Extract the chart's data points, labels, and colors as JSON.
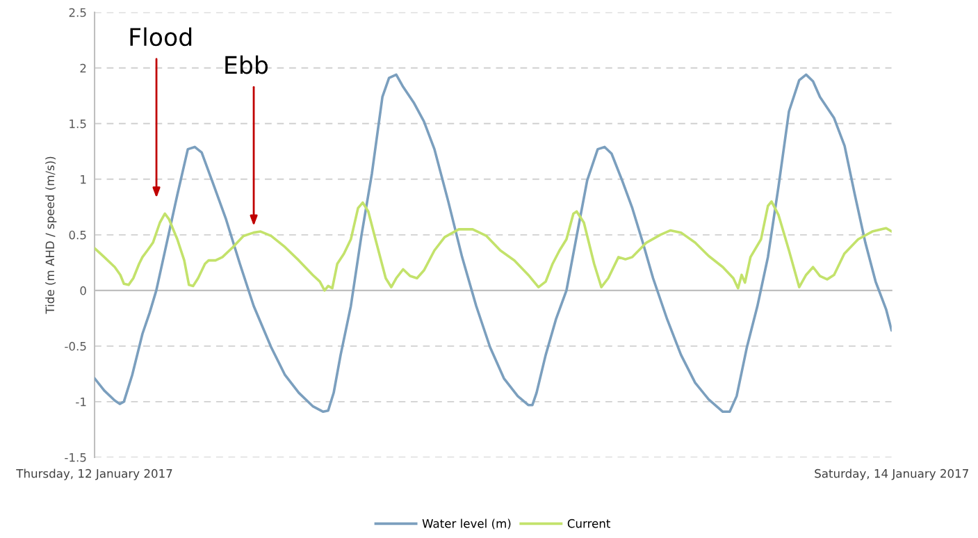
{
  "chart_data": {
    "type": "line",
    "ylabel": "Tide (m AHD / speed (m/s))",
    "xlim": [
      "2017-01-12",
      "2017-01-14"
    ],
    "xticks": [
      {
        "value": "2017-01-12",
        "label": "Thursday, 12 January 2017"
      },
      {
        "value": "2017-01-14",
        "label": "Saturday, 14 January 2017"
      }
    ],
    "ylim": [
      -1.5,
      2.5
    ],
    "yticks": [
      -1.5,
      -1,
      -0.5,
      0,
      0.5,
      1,
      1.5,
      2,
      2.5
    ],
    "grid": "y",
    "legend": "bottom",
    "line_style": "solid",
    "marker": "none",
    "annotations": [
      "Flood",
      "Ebb"
    ],
    "series": [
      {
        "name": "Water level (m)",
        "color": "#7b9fbe",
        "x": [
          "2017-01-12T00:00",
          "2017-01-12T00:35",
          "2017-01-12T01:13",
          "2017-01-12T01:31",
          "2017-01-12T01:46",
          "2017-01-12T02:16",
          "2017-01-12T02:53",
          "2017-01-12T03:19",
          "2017-01-12T03:43",
          "2017-01-12T04:21",
          "2017-01-12T04:59",
          "2017-01-12T05:37",
          "2017-01-12T06:02",
          "2017-01-12T06:27",
          "2017-01-12T07:04",
          "2017-01-12T07:55",
          "2017-01-12T08:45",
          "2017-01-12T09:35",
          "2017-01-12T10:38",
          "2017-01-12T11:28",
          "2017-01-12T12:18",
          "2017-01-12T13:08",
          "2017-01-12T13:46",
          "2017-01-12T14:04",
          "2017-01-12T14:24",
          "2017-01-12T14:49",
          "2017-01-12T15:26",
          "2017-01-12T16:04",
          "2017-01-12T16:42",
          "2017-01-12T17:20",
          "2017-01-12T17:44",
          "2017-01-12T18:10",
          "2017-01-12T18:35",
          "2017-01-12T19:13",
          "2017-01-12T19:50",
          "2017-01-12T20:28",
          "2017-01-12T21:18",
          "2017-01-12T22:08",
          "2017-01-12T22:59",
          "2017-01-12T23:49",
          "2017-01-13T00:39",
          "2017-01-13T01:29",
          "2017-01-13T02:07",
          "2017-01-13T02:22",
          "2017-01-13T02:37",
          "2017-01-13T03:10",
          "2017-01-13T03:47",
          "2017-01-13T04:25",
          "2017-01-13T05:02",
          "2017-01-13T05:40",
          "2017-01-13T06:18",
          "2017-01-13T06:43",
          "2017-01-13T07:08",
          "2017-01-13T07:46",
          "2017-01-13T08:23",
          "2017-01-13T09:01",
          "2017-01-13T09:38",
          "2017-01-13T10:29",
          "2017-01-13T11:19",
          "2017-01-13T12:10",
          "2017-01-13T12:59",
          "2017-01-13T13:50",
          "2017-01-13T14:15",
          "2017-01-13T14:40",
          "2017-01-13T15:17",
          "2017-01-13T15:55",
          "2017-01-13T16:33",
          "2017-01-13T17:11",
          "2017-01-13T17:49",
          "2017-01-13T18:26",
          "2017-01-13T18:51",
          "2017-01-13T19:16",
          "2017-01-13T19:41",
          "2017-01-13T20:32",
          "2017-01-13T21:10",
          "2017-01-13T21:47",
          "2017-01-13T22:25",
          "2017-01-13T23:02",
          "2017-01-13T23:40",
          "2017-01-14T00:00"
        ],
        "values": [
          -0.79,
          -0.9,
          -0.99,
          -1.02,
          -1.0,
          -0.76,
          -0.39,
          -0.2,
          0,
          0.43,
          0.86,
          1.27,
          1.29,
          1.24,
          0.99,
          0.64,
          0.24,
          -0.14,
          -0.51,
          -0.76,
          -0.92,
          -1.04,
          -1.09,
          -1.08,
          -0.92,
          -0.58,
          -0.14,
          0.49,
          1.05,
          1.74,
          1.91,
          1.94,
          1.83,
          1.69,
          1.52,
          1.27,
          0.8,
          0.3,
          -0.14,
          -0.51,
          -0.79,
          -0.95,
          -1.03,
          -1.03,
          -0.92,
          -0.58,
          -0.26,
          0,
          0.49,
          0.99,
          1.27,
          1.29,
          1.23,
          0.99,
          0.74,
          0.43,
          0.11,
          -0.26,
          -0.58,
          -0.83,
          -0.98,
          -1.09,
          -1.09,
          -0.95,
          -0.51,
          -0.14,
          0.3,
          0.93,
          1.61,
          1.89,
          1.94,
          1.88,
          1.74,
          1.55,
          1.3,
          0.86,
          0.43,
          0.08,
          -0.17,
          -0.36
        ]
      },
      {
        "name": "Current",
        "color": "#c3e26b",
        "x": [
          "2017-01-12T00:00",
          "2017-01-12T00:35",
          "2017-01-12T01:13",
          "2017-01-12T01:33",
          "2017-01-12T01:46",
          "2017-01-12T02:03",
          "2017-01-12T02:20",
          "2017-01-12T02:41",
          "2017-01-12T02:53",
          "2017-01-12T03:11",
          "2017-01-12T03:31",
          "2017-01-12T03:56",
          "2017-01-12T04:14",
          "2017-01-12T04:29",
          "2017-01-12T04:59",
          "2017-01-12T05:24",
          "2017-01-12T05:41",
          "2017-01-12T05:56",
          "2017-01-12T06:14",
          "2017-01-12T06:39",
          "2017-01-12T06:52",
          "2017-01-12T07:17",
          "2017-01-12T07:42",
          "2017-01-12T08:20",
          "2017-01-12T08:58",
          "2017-01-12T09:35",
          "2017-01-12T10:00",
          "2017-01-12T10:38",
          "2017-01-12T11:28",
          "2017-01-12T12:18",
          "2017-01-12T13:08",
          "2017-01-12T13:34",
          "2017-01-12T13:51",
          "2017-01-12T14:04",
          "2017-01-12T14:19",
          "2017-01-12T14:37",
          "2017-01-12T15:01",
          "2017-01-12T15:26",
          "2017-01-12T15:52",
          "2017-01-12T16:09",
          "2017-01-12T16:29",
          "2017-01-12T16:55",
          "2017-01-12T17:32",
          "2017-01-12T17:52",
          "2017-01-12T18:10",
          "2017-01-12T18:35",
          "2017-01-12T19:00",
          "2017-01-12T19:25",
          "2017-01-12T19:50",
          "2017-01-12T20:28",
          "2017-01-12T21:05",
          "2017-01-12T21:56",
          "2017-01-12T22:46",
          "2017-01-12T23:36",
          "2017-01-13T00:26",
          "2017-01-13T01:17",
          "2017-01-13T02:07",
          "2017-01-13T02:44",
          "2017-01-13T03:10",
          "2017-01-13T03:35",
          "2017-01-13T04:00",
          "2017-01-13T04:25",
          "2017-01-13T04:50",
          "2017-01-13T05:02",
          "2017-01-13T05:28",
          "2017-01-13T06:05",
          "2017-01-13T06:31",
          "2017-01-13T06:56",
          "2017-01-13T07:33",
          "2017-01-13T07:58",
          "2017-01-13T08:23",
          "2017-01-13T09:14",
          "2017-01-13T10:04",
          "2017-01-13T10:41",
          "2017-01-13T11:19",
          "2017-01-13T12:10",
          "2017-01-13T12:59",
          "2017-01-13T13:50",
          "2017-01-13T14:28",
          "2017-01-13T14:45",
          "2017-01-13T14:58",
          "2017-01-13T15:10",
          "2017-01-13T15:30",
          "2017-01-13T16:08",
          "2017-01-13T16:33",
          "2017-01-13T16:46",
          "2017-01-13T17:11",
          "2017-01-13T17:49",
          "2017-01-13T18:26",
          "2017-01-13T18:51",
          "2017-01-13T19:16",
          "2017-01-13T19:41",
          "2017-01-13T20:07",
          "2017-01-13T20:32",
          "2017-01-13T21:09",
          "2017-01-13T21:59",
          "2017-01-13T22:50",
          "2017-01-13T23:40",
          "2017-01-14T00:00"
        ],
        "values": [
          0.38,
          0.3,
          0.21,
          0.14,
          0.06,
          0.05,
          0.11,
          0.24,
          0.3,
          0.36,
          0.43,
          0.61,
          0.69,
          0.64,
          0.46,
          0.27,
          0.05,
          0.04,
          0.11,
          0.24,
          0.27,
          0.27,
          0.3,
          0.39,
          0.49,
          0.52,
          0.53,
          0.49,
          0.39,
          0.27,
          0.14,
          0.08,
          0.0,
          0.04,
          0.02,
          0.24,
          0.33,
          0.46,
          0.74,
          0.79,
          0.71,
          0.46,
          0.11,
          0.03,
          0.11,
          0.19,
          0.13,
          0.11,
          0.18,
          0.36,
          0.48,
          0.55,
          0.55,
          0.49,
          0.36,
          0.27,
          0.14,
          0.03,
          0.08,
          0.24,
          0.36,
          0.46,
          0.69,
          0.71,
          0.61,
          0.24,
          0.03,
          0.11,
          0.3,
          0.28,
          0.3,
          0.43,
          0.5,
          0.54,
          0.52,
          0.43,
          0.31,
          0.21,
          0.11,
          0.02,
          0.14,
          0.07,
          0.3,
          0.46,
          0.76,
          0.8,
          0.68,
          0.36,
          0.03,
          0.14,
          0.21,
          0.13,
          0.1,
          0.14,
          0.33,
          0.46,
          0.53,
          0.56,
          0.53
        ]
      }
    ]
  }
}
